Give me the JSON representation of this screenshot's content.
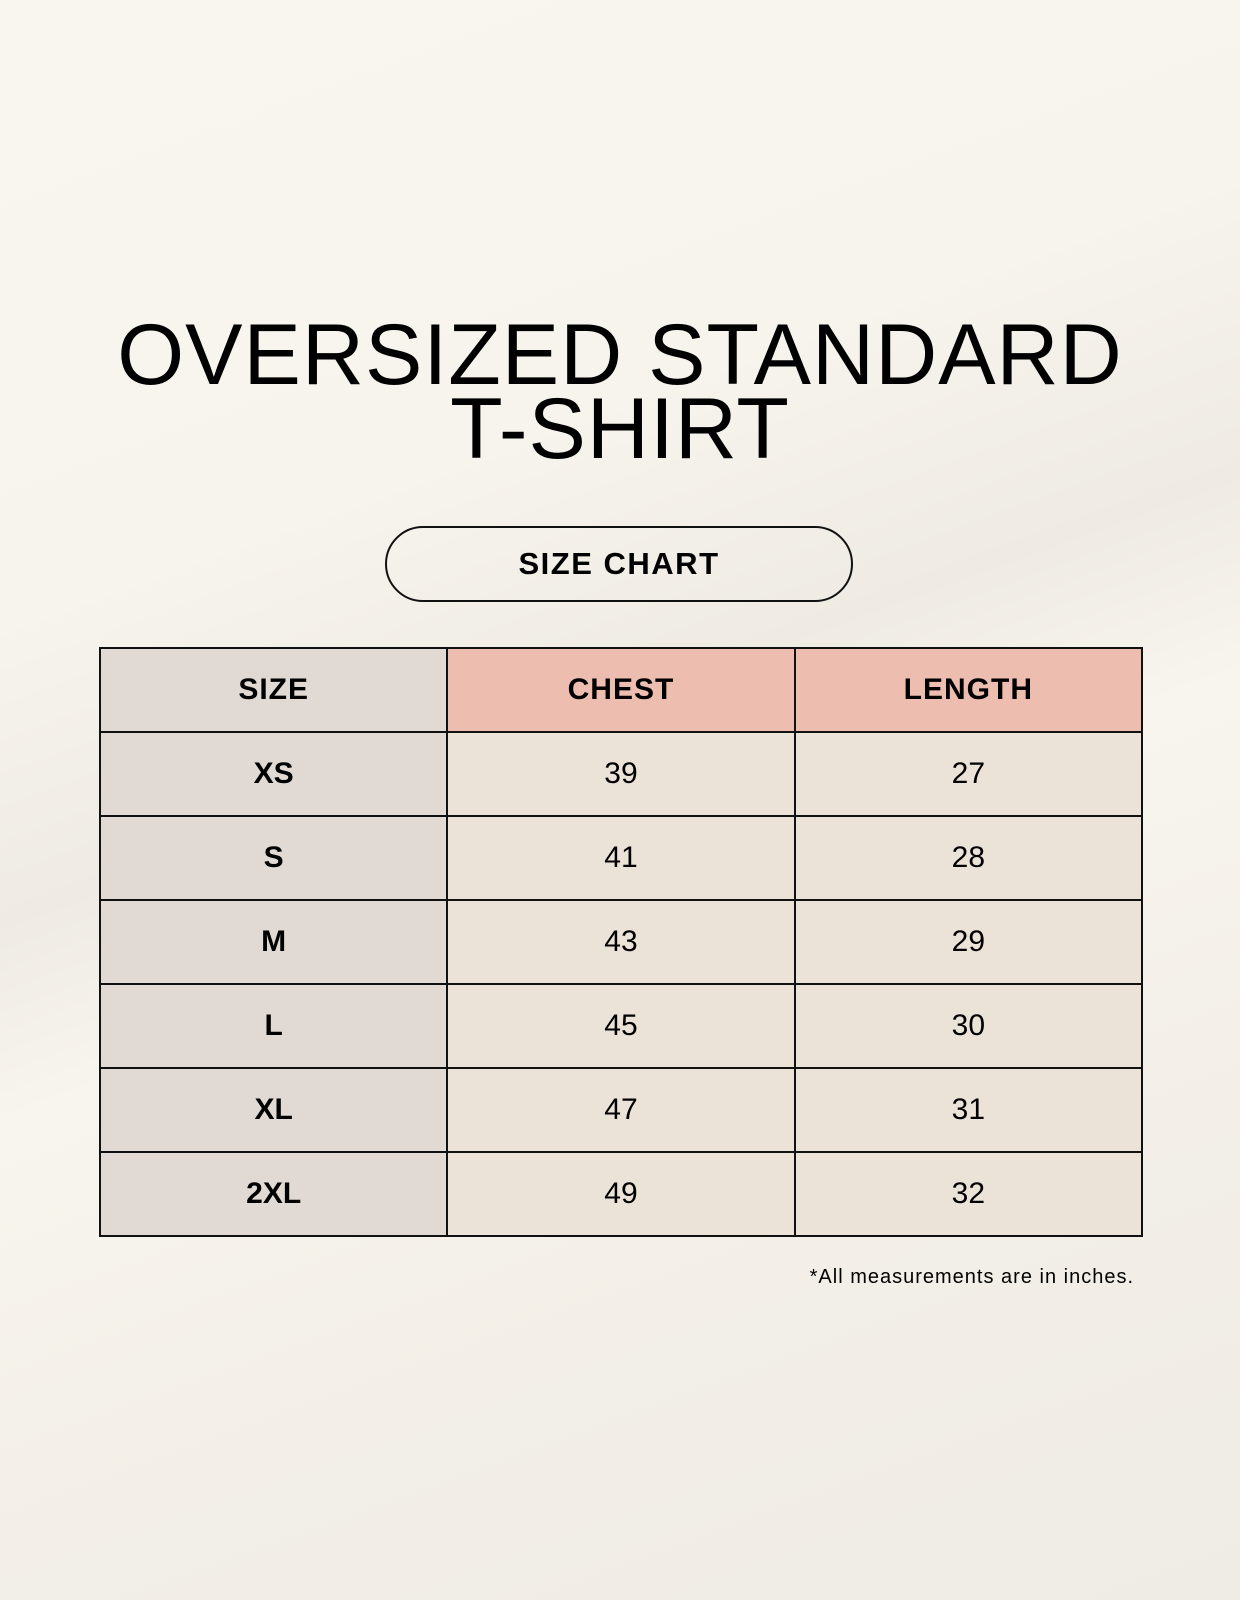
{
  "title_line1": "OVERSIZED STANDARD",
  "title_line2": "T-SHIRT",
  "badge": "SIZE CHART",
  "table": {
    "headers": [
      "SIZE",
      "CHEST",
      "LENGTH"
    ],
    "rows": [
      [
        "XS",
        "39",
        "27"
      ],
      [
        "S",
        "41",
        "28"
      ],
      [
        "M",
        "43",
        "29"
      ],
      [
        "L",
        "45",
        "30"
      ],
      [
        "XL",
        "47",
        "31"
      ],
      [
        "2XL",
        "49",
        "32"
      ]
    ]
  },
  "note": "*All measurements are in inches.",
  "colors": {
    "size_column": "#e1d9d3",
    "measure_header": "#edbdb0",
    "value_cells": "#ebe2d8"
  }
}
